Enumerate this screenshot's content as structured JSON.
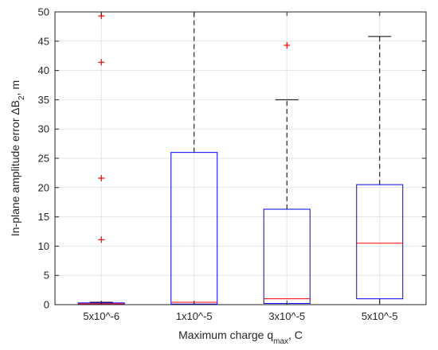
{
  "chart_data": {
    "type": "box",
    "title": "",
    "xlabel": {
      "main": "Maximum charge q",
      "sub": "max",
      "suffix": ", C"
    },
    "ylabel": {
      "main": "In-plane amplitude error ",
      "symbol": "ΔB",
      "sub": "2",
      "suffix": ", m"
    },
    "ylim": [
      0,
      50
    ],
    "yticks": [
      0,
      5,
      10,
      15,
      20,
      25,
      30,
      35,
      40,
      45,
      50
    ],
    "grid": true,
    "categories": [
      "5x10^-6",
      "1x10^-5",
      "3x10^-5",
      "5x10^-5"
    ],
    "boxes": [
      {
        "category": "5x10^-6",
        "q1": 0.05,
        "median": 0.15,
        "q3": 0.3,
        "whisker_low": 0,
        "whisker_high": 0.4,
        "outliers": [
          11.1,
          21.6,
          41.4,
          49.3
        ]
      },
      {
        "category": "1x10^-5",
        "q1": 0.1,
        "median": 0.4,
        "q3": 26.0,
        "whisker_low": 0,
        "whisker_high": 50,
        "outliers": []
      },
      {
        "category": "3x10^-5",
        "q1": 0.2,
        "median": 1.0,
        "q3": 16.3,
        "whisker_low": 0,
        "whisker_high": 35.0,
        "outliers": [
          44.3
        ]
      },
      {
        "category": "5x10^-5",
        "q1": 1.0,
        "median": 10.5,
        "q3": 20.5,
        "whisker_low": 0,
        "whisker_high": 45.8,
        "outliers": []
      }
    ],
    "colors": {
      "box": "#0000ff",
      "median": "#ff0000",
      "whisker": "#000000",
      "outlier": "#ff0000",
      "grid": "#e5e5e5",
      "axis": "#262626"
    }
  }
}
